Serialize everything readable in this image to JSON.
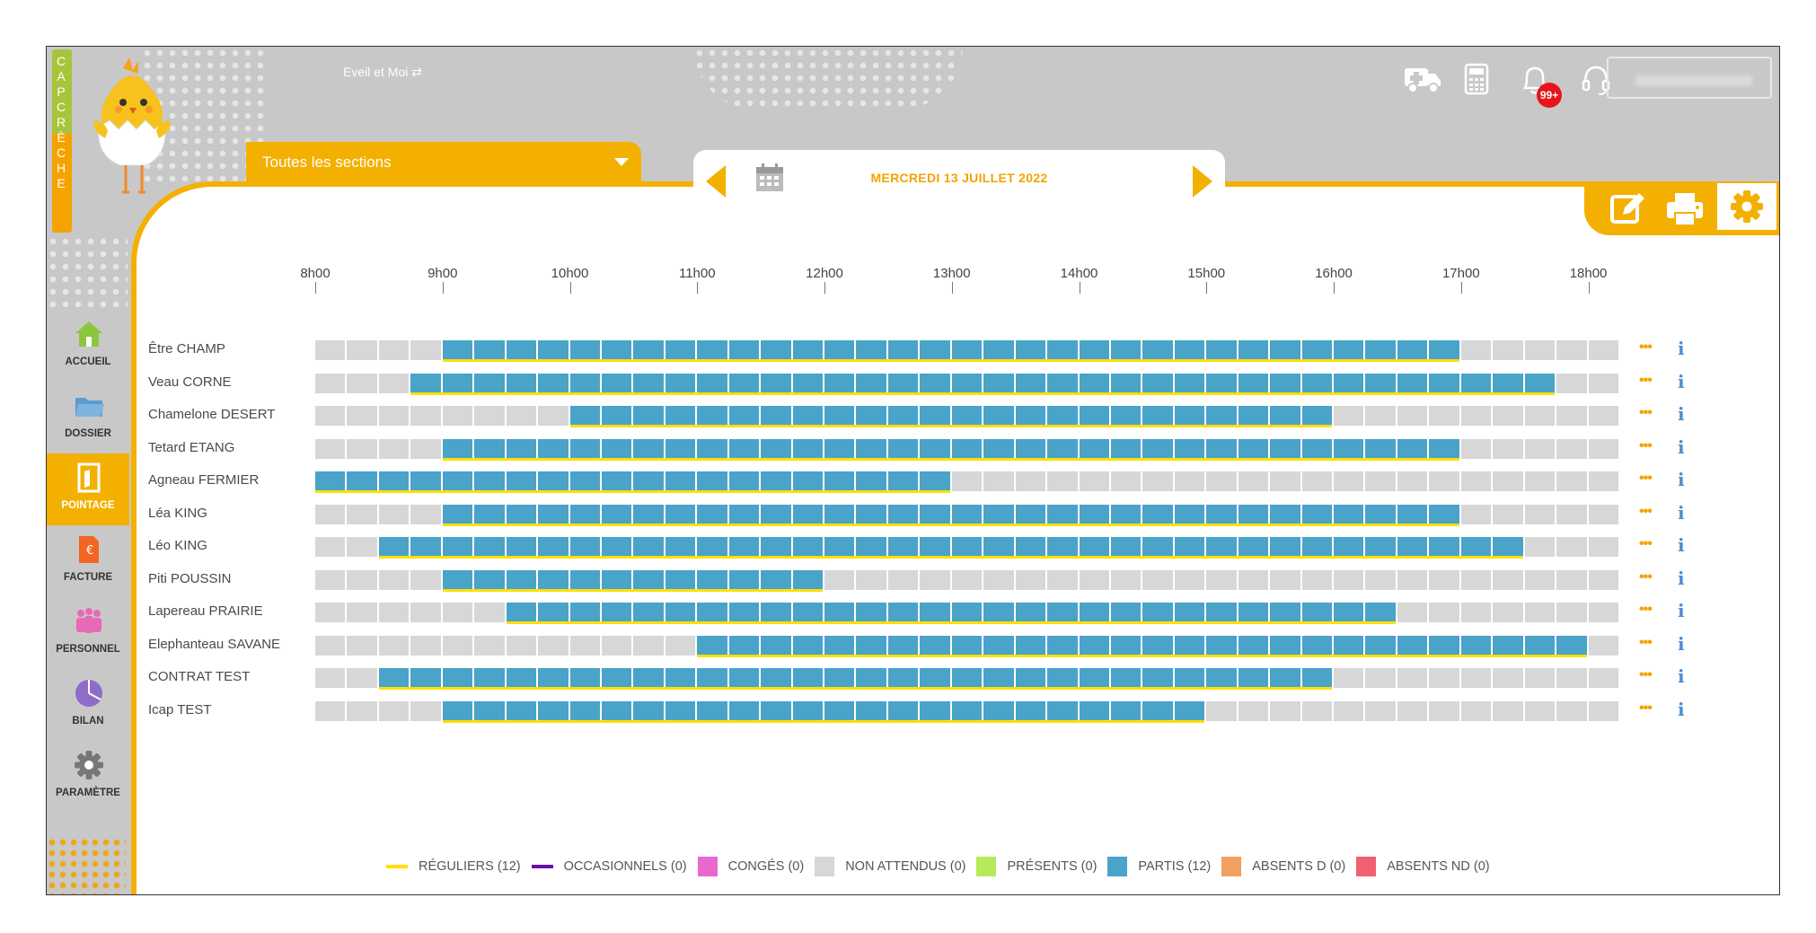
{
  "app": {
    "logo_letters": [
      "C",
      "A",
      "P",
      "C",
      "R",
      "È",
      "C",
      "H",
      "E"
    ],
    "org_name": "Eveil et Moi ⇄",
    "notification_badge": "99+",
    "user_label": ""
  },
  "sidebar": {
    "items": [
      {
        "label": "ACCUEIL",
        "icon": "home-icon",
        "color": "#8cc63f"
      },
      {
        "label": "DOSSIER",
        "icon": "folder-icon",
        "color": "#5b9bd5"
      },
      {
        "label": "POINTAGE",
        "icon": "door-icon",
        "color": "#ffffff",
        "active": true
      },
      {
        "label": "FACTURE",
        "icon": "invoice-icon",
        "color": "#f26522"
      },
      {
        "label": "PERSONNEL",
        "icon": "people-icon",
        "color": "#e968b8"
      },
      {
        "label": "BILAN",
        "icon": "pie-icon",
        "color": "#8e6cc8"
      },
      {
        "label": "PARAMÈTRE",
        "icon": "gear-icon",
        "color": "#777777"
      }
    ]
  },
  "filter": {
    "sections_label": "Toutes les sections"
  },
  "date": {
    "label": "MERCREDI 13 JUILLET 2022"
  },
  "timeline": {
    "hours": [
      "8h00",
      "9h00",
      "10h00",
      "11h00",
      "12h00",
      "13h00",
      "14h00",
      "15h00",
      "16h00",
      "17h00",
      "18h00"
    ],
    "start_hour": 8,
    "end_hour": 18.25,
    "rows": [
      {
        "name": "Être CHAMP",
        "start": 9.0,
        "end": 17.0
      },
      {
        "name": "Veau CORNE",
        "start": 8.75,
        "end": 17.75
      },
      {
        "name": "Chamelone DESERT",
        "start": 10.0,
        "end": 16.0
      },
      {
        "name": "Tetard ETANG",
        "start": 9.0,
        "end": 17.0
      },
      {
        "name": "Agneau FERMIER",
        "start": 8.0,
        "end": 13.0
      },
      {
        "name": "Léa KING",
        "start": 9.0,
        "end": 17.0
      },
      {
        "name": "Léo KING",
        "start": 8.5,
        "end": 17.5
      },
      {
        "name": "Piti POUSSIN",
        "start": 9.0,
        "end": 12.0
      },
      {
        "name": "Lapereau PRAIRIE",
        "start": 9.5,
        "end": 16.5
      },
      {
        "name": "Elephanteau SAVANE",
        "start": 11.0,
        "end": 18.0
      },
      {
        "name": "CONTRAT TEST",
        "start": 8.5,
        "end": 16.0
      },
      {
        "name": "Icap TEST",
        "start": 9.0,
        "end": 15.0
      }
    ],
    "row_more_label": "•••",
    "row_info_label": "i"
  },
  "legend": [
    {
      "label": "RÉGULIERS (12)",
      "color": "#ffe000",
      "kind": "line"
    },
    {
      "label": "OCCASIONNELS (0)",
      "color": "#6a0dad",
      "kind": "line"
    },
    {
      "label": "CONGÉS (0)",
      "color": "#e968cf",
      "kind": "box"
    },
    {
      "label": "NON ATTENDUS (0)",
      "color": "#d7d7d7",
      "kind": "box"
    },
    {
      "label": "PRÉSENTS (0)",
      "color": "#b6ea5a",
      "kind": "box"
    },
    {
      "label": "PARTIS (12)",
      "color": "#4aa3c8",
      "kind": "box"
    },
    {
      "label": "ABSENTS D (0)",
      "color": "#f0a060",
      "kind": "box"
    },
    {
      "label": "ABSENTS ND (0)",
      "color": "#f06070",
      "kind": "box"
    }
  ],
  "colors": {
    "accent": "#f4b000",
    "slot_on": "#4aa3c8",
    "slot_off": "#d7d7d7"
  }
}
